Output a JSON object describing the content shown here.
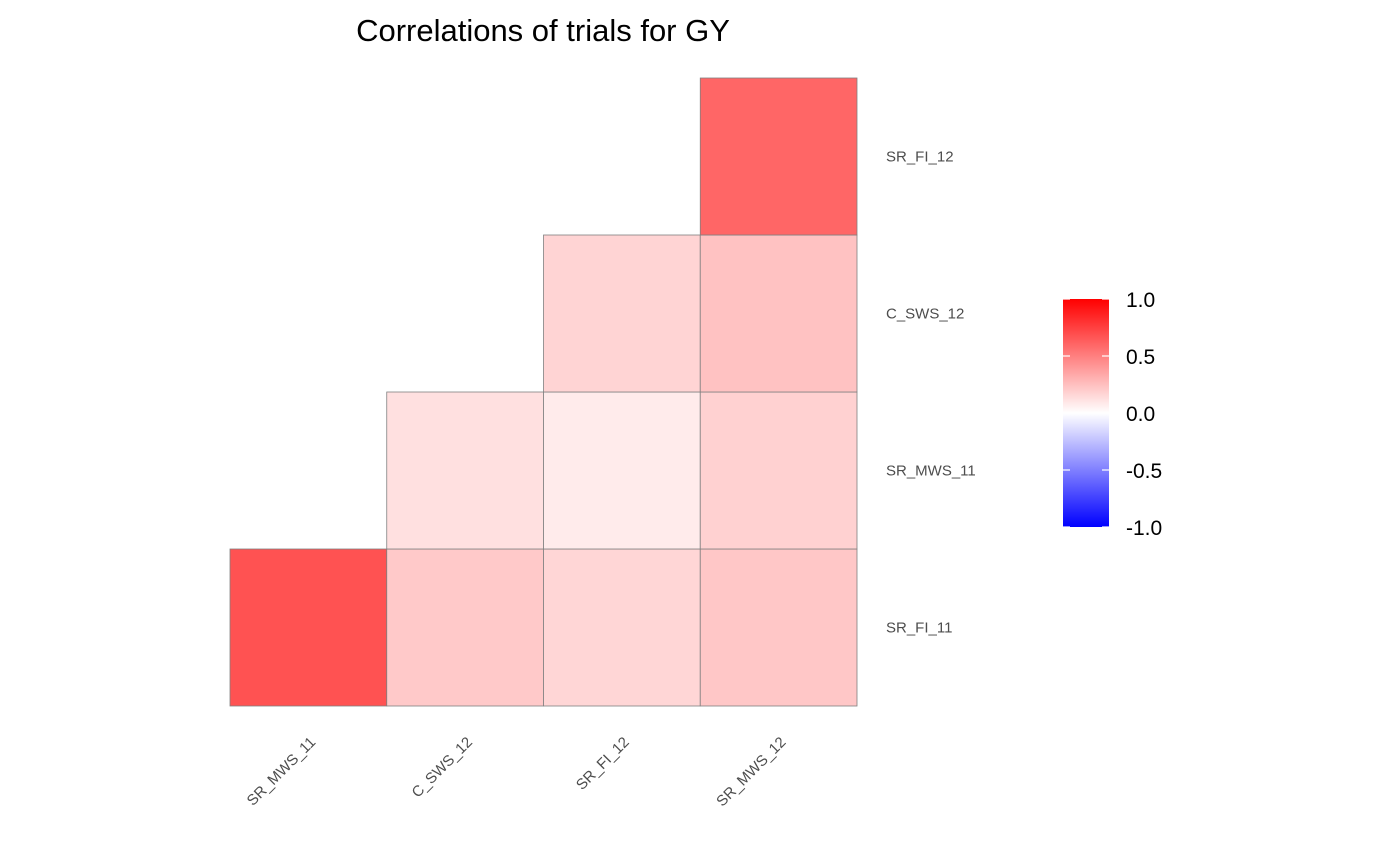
{
  "chart_data": {
    "type": "heatmap",
    "title": "Correlations of trials for GY",
    "xlabel": "",
    "ylabel": "",
    "x_categories": [
      "SR_MWS_11",
      "C_SWS_12",
      "SR_FI_12",
      "SR_MWS_12"
    ],
    "y_categories": [
      "SR_FI_11",
      "SR_MWS_11",
      "C_SWS_12",
      "SR_FI_12"
    ],
    "cells": [
      {
        "x": "SR_MWS_11",
        "y": "SR_FI_11",
        "value": 0.68
      },
      {
        "x": "C_SWS_12",
        "y": "SR_FI_11",
        "value": 0.21
      },
      {
        "x": "SR_FI_12",
        "y": "SR_FI_11",
        "value": 0.16
      },
      {
        "x": "SR_MWS_12",
        "y": "SR_FI_11",
        "value": 0.22
      },
      {
        "x": "C_SWS_12",
        "y": "SR_MWS_11",
        "value": 0.12
      },
      {
        "x": "SR_FI_12",
        "y": "SR_MWS_11",
        "value": 0.08
      },
      {
        "x": "SR_MWS_12",
        "y": "SR_MWS_11",
        "value": 0.18
      },
      {
        "x": "SR_FI_12",
        "y": "C_SWS_12",
        "value": 0.17
      },
      {
        "x": "SR_MWS_12",
        "y": "C_SWS_12",
        "value": 0.24
      },
      {
        "x": "SR_MWS_12",
        "y": "SR_FI_12",
        "value": 0.6
      }
    ],
    "legend": {
      "title": "",
      "position": "right",
      "ticks": [
        1.0,
        0.5,
        0.0,
        -0.5,
        -1.0
      ],
      "tick_labels": [
        "1.0",
        "0.5",
        "0.0",
        "-0.5",
        "-1.0"
      ],
      "range": [
        -1,
        1
      ],
      "low_color": "#0000ff",
      "mid_color": "#ffffff",
      "high_color": "#ff0000"
    },
    "grid": false,
    "cell_border_color": "#808080"
  }
}
